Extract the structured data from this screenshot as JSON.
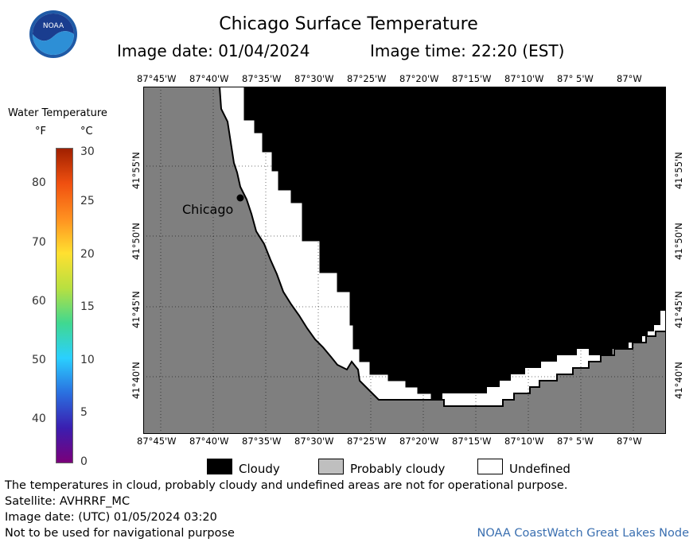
{
  "header": {
    "logo_icon": "noaa-logo-icon",
    "logo_text": "NOAA",
    "title": "Chicago Surface Temperature",
    "image_date": "Image date: 01/04/2024",
    "image_time": "Image time: 22:20 (EST)"
  },
  "colorbar": {
    "title": "Water Temperature",
    "unit_f": "°F",
    "unit_c": "°C",
    "f_ticks": [
      "80",
      "70",
      "60",
      "50",
      "40"
    ],
    "c_ticks": [
      "30",
      "25",
      "20",
      "15",
      "10",
      "5",
      "0"
    ],
    "gradient_colors": [
      "#7a007a",
      "#3a1eb0",
      "#2a70e0",
      "#2ad0ff",
      "#40d890",
      "#b8e040",
      "#ffe030",
      "#ff9020",
      "#f05010",
      "#a02000"
    ]
  },
  "map": {
    "top_lon_labels": [
      "87°45'W",
      "87°40'W",
      "87°35'W",
      "87°30'W",
      "87°25'W",
      "87°20'W",
      "87°15'W",
      "87°10'W",
      "87° 5'W",
      "87°W"
    ],
    "bottom_lon_labels": [
      "87°45'W",
      "87°40'W",
      "87°35'W",
      "87°30'W",
      "87°25'W",
      "87°20'W",
      "87°15'W",
      "87°10'W",
      "87° 5'W",
      "87°W"
    ],
    "left_lat_labels": [
      "41°55'N",
      "41°50'N",
      "41°45'N",
      "41°40'N"
    ],
    "right_lat_labels": [
      "41°55'N",
      "41°50'N",
      "41°45'N",
      "41°40'N"
    ],
    "city_label": "Chicago",
    "land_color": "#7f7f7f",
    "cloud_color": "#000000",
    "undefined_color": "#ffffff"
  },
  "legend": {
    "items": [
      {
        "label": "Cloudy",
        "color": "#000000"
      },
      {
        "label": "Probably cloudy",
        "color": "#bfbfbf"
      },
      {
        "label": "Undefined",
        "color": "#ffffff"
      }
    ]
  },
  "footer": {
    "notice": "The temperatures in cloud, probably cloudy and undefined areas are not for operational purpose.",
    "satellite": "Satellite: AVHRRF_MC",
    "utc_date": "Image date: (UTC) 01/05/2024  03:20",
    "nav_warning": "Not to be used for navigational purpose",
    "credit": "NOAA CoastWatch Great Lakes Node"
  }
}
